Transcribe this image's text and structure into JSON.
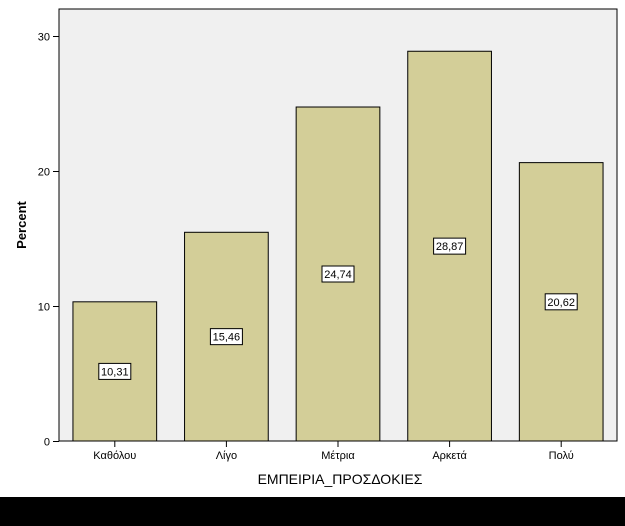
{
  "chart_data": {
    "type": "bar",
    "title": "",
    "xlabel": "ΕΜΠΕΙΡΙΑ_ΠΡΟΣΔΟΚΙΕΣ",
    "ylabel": "Percent",
    "categories": [
      "Καθόλου",
      "Λίγο",
      "Μέτρια",
      "Αρκετά",
      "Πολύ"
    ],
    "values": [
      10.31,
      15.46,
      24.74,
      28.87,
      20.62
    ],
    "data_labels": [
      "10,31",
      "15,46",
      "24,74",
      "28,87",
      "20,62"
    ],
    "ylim": [
      0,
      32
    ],
    "yticks": [
      0,
      10,
      20,
      30
    ],
    "grid": false,
    "legend": "none",
    "colors": {
      "bar_fill": "#d3ce98",
      "bar_stroke": "#000000",
      "plot_background": "#f0f0f0",
      "label_box_fill": "#ffffff"
    }
  }
}
